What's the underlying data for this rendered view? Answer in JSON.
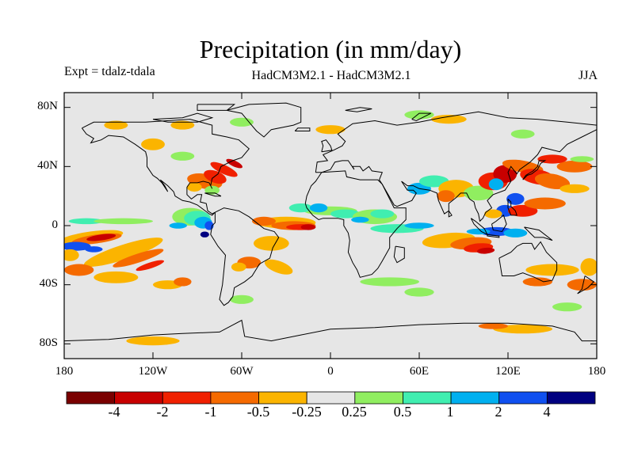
{
  "title": "Precipitation (in mm/day)",
  "experiment_label": "Expt = tdalz-tdala",
  "subtitle": "HadCM3M2.1 - HadCM3M2.1",
  "season": "JJA",
  "map": {
    "projection": "cylindrical-equidistant",
    "lon_range": [
      -180,
      180
    ],
    "lat_range": [
      -90,
      90
    ],
    "land_outlines": "coastlines",
    "lat_ticks": [
      {
        "lat": 80,
        "label": "80N"
      },
      {
        "lat": 40,
        "label": "40N"
      },
      {
        "lat": 0,
        "label": "0"
      },
      {
        "lat": -40,
        "label": "40S"
      },
      {
        "lat": -80,
        "label": "80S"
      }
    ],
    "lon_ticks": [
      {
        "lon": -180,
        "label": "180"
      },
      {
        "lon": -120,
        "label": "120W"
      },
      {
        "lon": -60,
        "label": "60W"
      },
      {
        "lon": 0,
        "label": "0"
      },
      {
        "lon": 60,
        "label": "60E"
      },
      {
        "lon": 120,
        "label": "120E"
      },
      {
        "lon": 180,
        "label": "180"
      }
    ]
  },
  "colorbar": {
    "colors": [
      "#7a0000",
      "#c80000",
      "#f02000",
      "#f56a00",
      "#fbb400",
      "#e6e6e6",
      "#90ee60",
      "#40eeb0",
      "#00b0f0",
      "#1050f0",
      "#000080"
    ],
    "labels": [
      "-4",
      "-2",
      "-1",
      "-0.5",
      "-0.25",
      "0.25",
      "0.5",
      "1",
      "2",
      "4"
    ]
  }
}
